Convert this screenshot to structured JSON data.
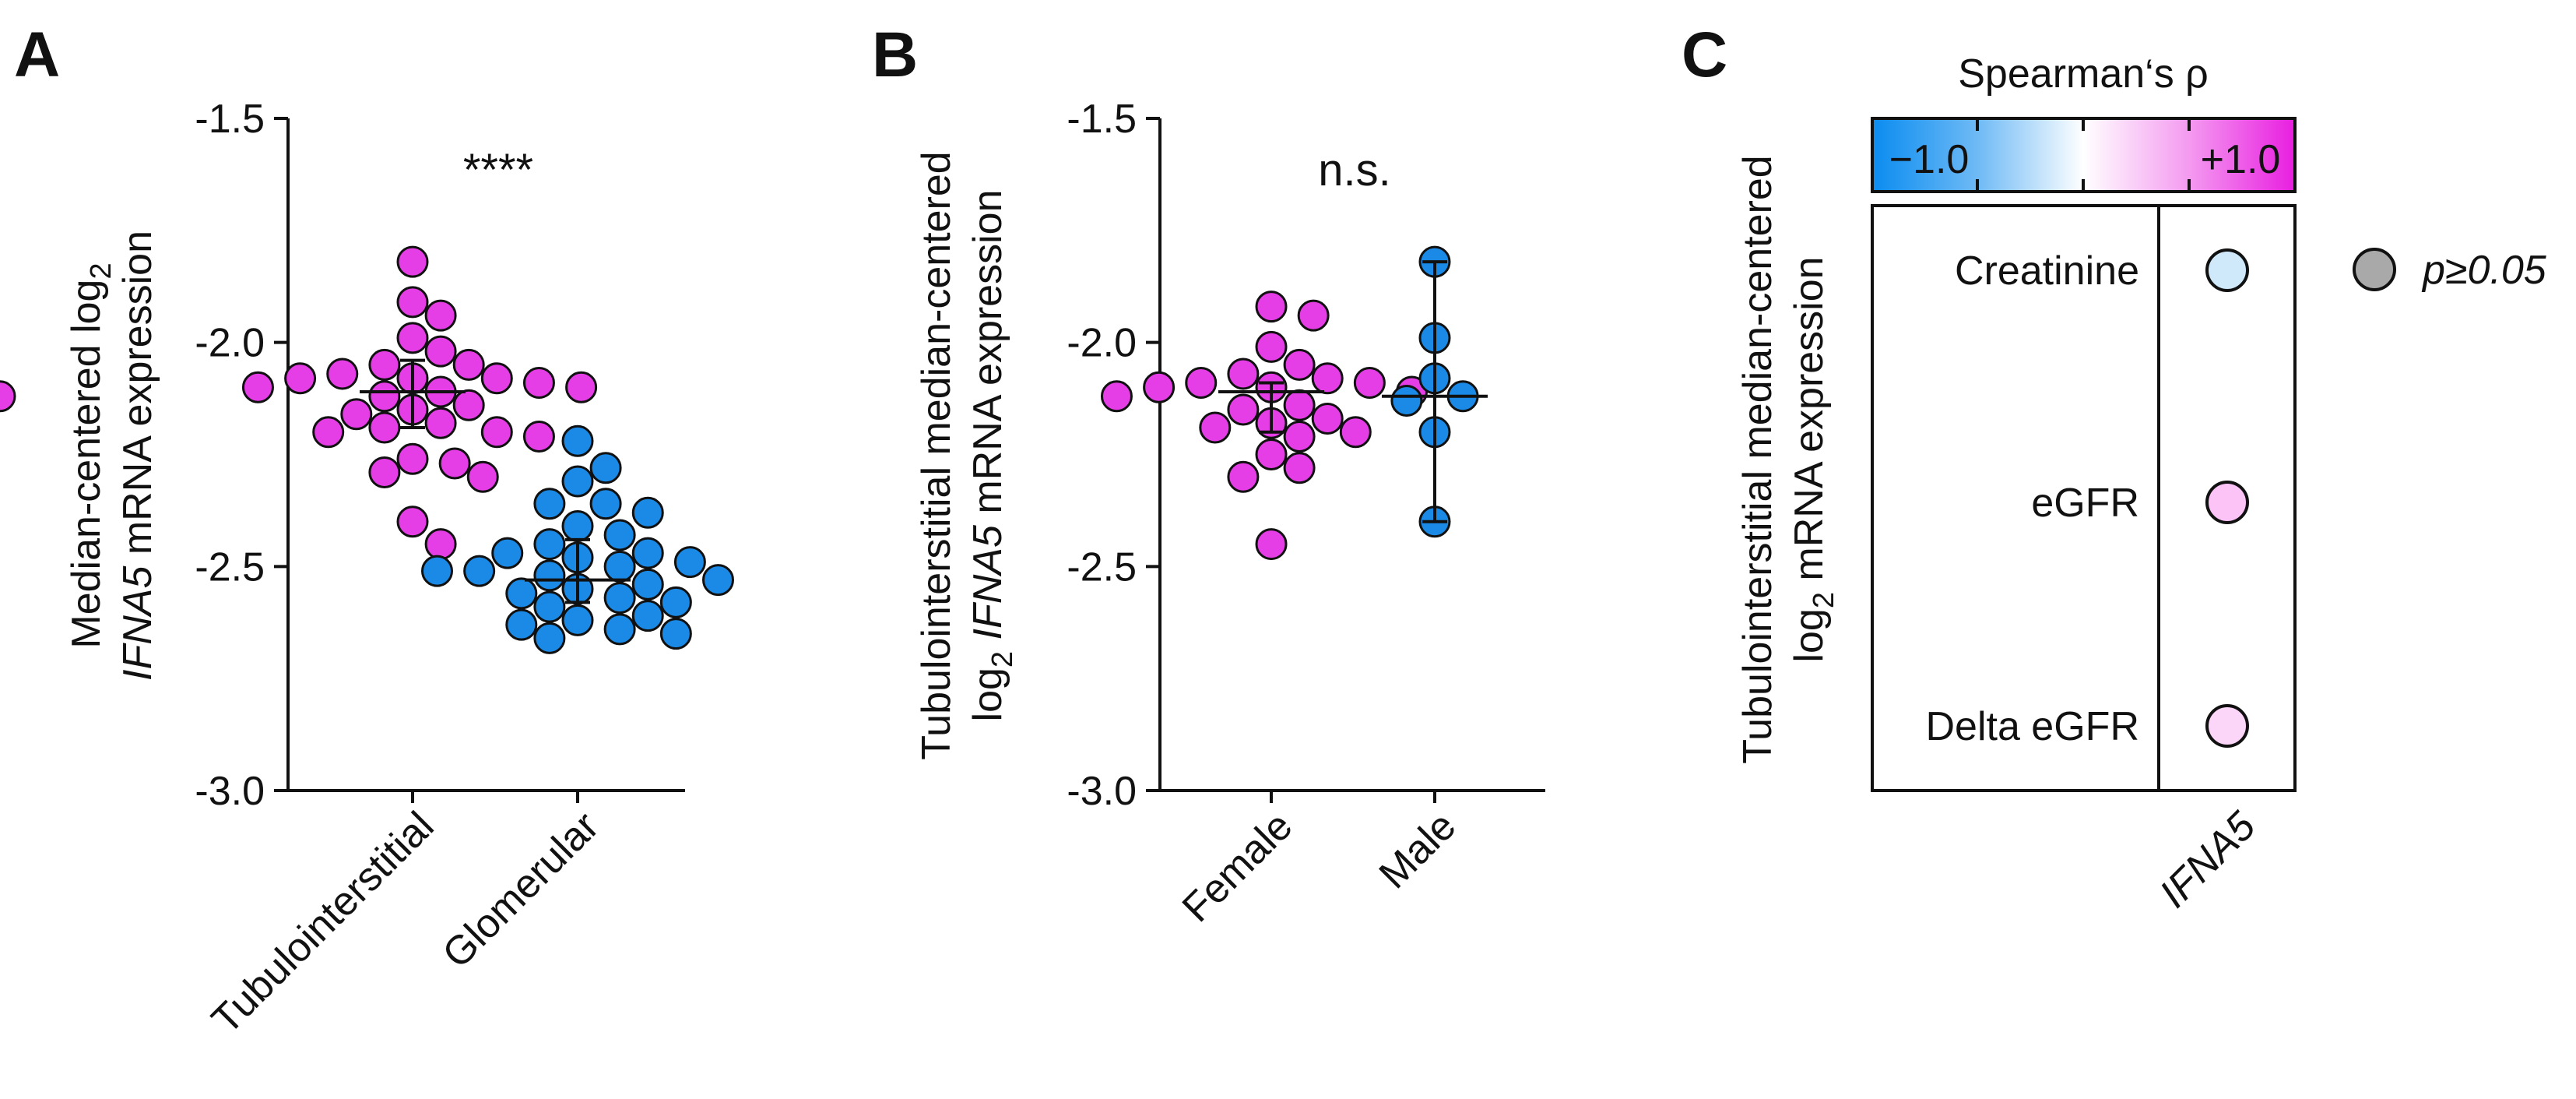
{
  "colors": {
    "pink": "#e63ee6",
    "blue": "#1a8ae6",
    "axis": "#111111"
  },
  "legend": {
    "p_label": "p≥0.05",
    "p_color": "#a9a9a9"
  },
  "chart_data": [
    {
      "panel": "A",
      "type": "scatter",
      "subtype": "dot-plot with median and IQR",
      "ylim": [
        -3.0,
        -1.5
      ],
      "yticks": [
        "-3.0",
        "-2.5",
        "-2.0",
        "-1.5"
      ],
      "ytick_values": [
        -3.0,
        -2.5,
        -2.0,
        -1.5
      ],
      "ylabel_line1": "Median-centered log",
      "ylabel_sub": "2",
      "ylabel_line2_gene": "IFNA5",
      "ylabel_line2_rest": " mRNA expression",
      "categories": [
        "Tubulointerstitial",
        "Glomerular"
      ],
      "significance": "****",
      "series": [
        {
          "name": "Tubulointerstitial",
          "color": "#e63ee6",
          "median": -2.11,
          "q1": -2.19,
          "q3": -2.04,
          "values": [
            -1.82,
            -1.91,
            -1.94,
            -1.99,
            -2.02,
            -2.05,
            -2.05,
            -2.07,
            -2.08,
            -2.08,
            -2.08,
            -2.09,
            -2.1,
            -2.1,
            -2.11,
            -2.12,
            -2.12,
            -2.14,
            -2.15,
            -2.16,
            -2.18,
            -2.19,
            -2.2,
            -2.2,
            -2.21,
            -2.26,
            -2.27,
            -2.29,
            -2.3,
            -2.4,
            -2.45
          ]
        },
        {
          "name": "Glomerular",
          "color": "#1a8ae6",
          "median": -2.53,
          "q1": -2.58,
          "q3": -2.44,
          "values": [
            -2.22,
            -2.28,
            -2.31,
            -2.36,
            -2.36,
            -2.38,
            -2.41,
            -2.43,
            -2.45,
            -2.47,
            -2.47,
            -2.48,
            -2.49,
            -2.5,
            -2.51,
            -2.51,
            -2.52,
            -2.53,
            -2.54,
            -2.55,
            -2.56,
            -2.57,
            -2.58,
            -2.59,
            -2.61,
            -2.62,
            -2.63,
            -2.64,
            -2.65,
            -2.66
          ]
        }
      ]
    },
    {
      "panel": "B",
      "type": "scatter",
      "subtype": "dot-plot with median and IQR",
      "ylim": [
        -3.0,
        -1.5
      ],
      "yticks": [
        "-3.0",
        "-2.5",
        "-2.0",
        "-1.5"
      ],
      "ytick_values": [
        -3.0,
        -2.5,
        -2.0,
        -1.5
      ],
      "ylabel_line1": "Tubulointerstitial median-centered",
      "ylabel_prefix": "log",
      "ylabel_sub": "2",
      "ylabel_gene": "IFNA5",
      "ylabel_rest": " mRNA expression",
      "categories": [
        "Female",
        "Male"
      ],
      "significance": "n.s.",
      "series": [
        {
          "name": "Female",
          "color": "#e63ee6",
          "median": -2.11,
          "q1": -2.2,
          "q3": -2.09,
          "values": [
            -1.92,
            -1.94,
            -2.01,
            -2.05,
            -2.07,
            -2.08,
            -2.09,
            -2.09,
            -2.1,
            -2.1,
            -2.11,
            -2.12,
            -2.14,
            -2.15,
            -2.17,
            -2.18,
            -2.19,
            -2.2,
            -2.21,
            -2.25,
            -2.28,
            -2.3,
            -2.45
          ]
        },
        {
          "name": "Male",
          "color": "#1a8ae6",
          "median": -2.12,
          "q1": -2.4,
          "q3": -1.82,
          "values": [
            -1.82,
            -1.99,
            -2.08,
            -2.12,
            -2.13,
            -2.2,
            -2.4
          ]
        }
      ]
    },
    {
      "panel": "C",
      "type": "heatmap",
      "subtype": "bubble correlation matrix",
      "colorbar_title": "Spearman‘s ρ",
      "colorbar_min_label": "−1.0",
      "colorbar_max_label": "+1.0",
      "colorbar_range": [
        -1.0,
        1.0
      ],
      "ylabel_line1": "Tubulointerstitial median-centered",
      "ylabel_prefix": "log",
      "ylabel_sub": "2",
      "ylabel_rest": " mRNA expression",
      "rows": [
        "Creatinine",
        "eGFR",
        "Delta eGFR"
      ],
      "columns": [
        "IFNA5"
      ],
      "values": [
        {
          "row": "Creatinine",
          "col": "IFNA5",
          "rho": -0.2,
          "significance": "p≥0.05",
          "fill": "#cfe9fb"
        },
        {
          "row": "eGFR",
          "col": "IFNA5",
          "rho": 0.3,
          "significance": "p≥0.05",
          "fill": "#fbc3f6"
        },
        {
          "row": "Delta eGFR",
          "col": "IFNA5",
          "rho": 0.2,
          "significance": "p≥0.05",
          "fill": "#fcd6f8"
        }
      ]
    }
  ]
}
